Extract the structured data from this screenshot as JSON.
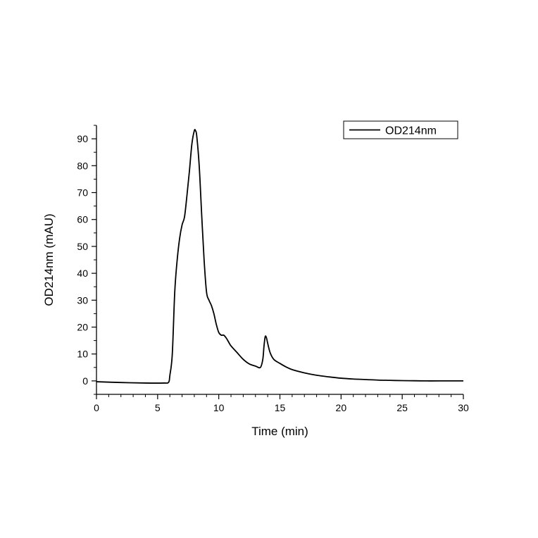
{
  "chart_data": {
    "type": "line",
    "title": "",
    "xlabel": "Time (min)",
    "ylabel": "OD214nm (mAU)",
    "xlim": [
      0,
      30
    ],
    "ylim": [
      -5,
      95
    ],
    "x_ticks": [
      0,
      5,
      10,
      15,
      20,
      25,
      30
    ],
    "y_ticks": [
      0,
      10,
      20,
      30,
      40,
      50,
      60,
      70,
      80,
      90
    ],
    "grid": false,
    "legend": {
      "position": "top-right",
      "entries": [
        "OD214nm"
      ]
    },
    "series": [
      {
        "name": "OD214nm",
        "color": "#000000",
        "x": [
          0,
          2,
          4,
          5.5,
          5.9,
          6.0,
          6.2,
          6.4,
          6.6,
          6.8,
          7.0,
          7.2,
          7.4,
          7.6,
          7.8,
          8.0,
          8.1,
          8.2,
          8.4,
          8.6,
          8.8,
          9.0,
          9.2,
          9.4,
          9.6,
          9.8,
          10.0,
          10.2,
          10.4,
          10.6,
          10.8,
          11.0,
          11.5,
          12.0,
          12.5,
          13.0,
          13.4,
          13.6,
          13.7,
          13.8,
          13.9,
          14.0,
          14.2,
          14.5,
          15.0,
          15.5,
          16,
          17,
          18,
          19,
          20,
          21,
          22,
          23,
          24,
          25,
          26,
          27,
          28,
          29,
          30
        ],
        "y": [
          -0.3,
          -0.6,
          -0.8,
          -0.8,
          -0.5,
          2,
          10,
          33,
          45,
          53,
          58,
          61,
          69,
          78,
          88,
          93,
          93,
          91,
          80,
          62,
          45,
          33,
          30,
          28,
          25,
          21,
          18,
          17,
          17,
          16,
          14.5,
          13,
          10.5,
          8,
          6.3,
          5.5,
          5,
          8,
          13,
          16.5,
          16,
          14,
          10.5,
          8,
          6.5,
          5.2,
          4.2,
          3.0,
          2.1,
          1.5,
          1.0,
          0.7,
          0.5,
          0.3,
          0.2,
          0.1,
          0.05,
          0,
          0,
          0,
          0
        ]
      }
    ]
  }
}
